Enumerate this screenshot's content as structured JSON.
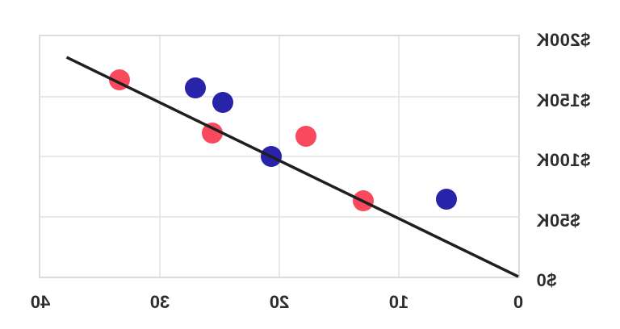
{
  "chart_data": {
    "type": "scatter",
    "title": "",
    "xlabel": "",
    "ylabel": "",
    "orientation_note": "entire chart is rendered horizontally mirrored: axis text is backwards, x axis reads 40 to 0 left-to-right, y-axis labels appear on the right",
    "grid": true,
    "legend": false,
    "x_axis": {
      "min": 0,
      "max": 40,
      "ticks": [
        {
          "value": 0,
          "label": "0"
        },
        {
          "value": 10,
          "label": "10"
        },
        {
          "value": 20,
          "label": "20"
        },
        {
          "value": 30,
          "label": "30"
        },
        {
          "value": 40,
          "label": "40"
        }
      ]
    },
    "y_axis": {
      "min": 0,
      "max": 200000,
      "unit": "USD",
      "ticks": [
        {
          "value": 0,
          "label": "$0"
        },
        {
          "value": 50000,
          "label": "$50K"
        },
        {
          "value": 100000,
          "label": "$100K"
        },
        {
          "value": 150000,
          "label": "$150K"
        },
        {
          "value": 200000,
          "label": "$200K"
        }
      ]
    },
    "series": [
      {
        "name": "red-series",
        "color": "#F9495C",
        "points": [
          {
            "x": 33.4,
            "y": 164000
          },
          {
            "x": 25.6,
            "y": 119500
          },
          {
            "x": 17.8,
            "y": 117000
          },
          {
            "x": 13.0,
            "y": 63000
          }
        ]
      },
      {
        "name": "blue-series",
        "color": "#2823A8",
        "points": [
          {
            "x": 27.0,
            "y": 157000
          },
          {
            "x": 24.7,
            "y": 145000
          },
          {
            "x": 20.7,
            "y": 100000
          },
          {
            "x": 6.0,
            "y": 64500
          }
        ]
      }
    ],
    "trend_line": {
      "color": "#1F1F1F",
      "from": {
        "x": 37.8,
        "y": 182500
      },
      "to": {
        "x": 0,
        "y": 0
      }
    }
  },
  "style": {
    "background": "#ffffff",
    "grid_color": "#e8e8e8",
    "border_color": "#dcdcdc",
    "label_color": "#2d2d2d",
    "red_point_color": "#F9495C",
    "blue_point_color": "#2823A8",
    "trend_line_color": "#1F1F1F"
  }
}
